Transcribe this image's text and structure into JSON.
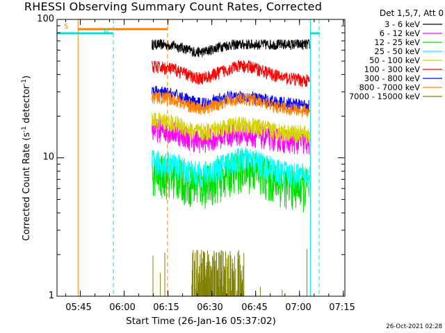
{
  "chart_data": {
    "type": "line",
    "title": "RHESSI Observing Summary Count Rates, Corrected",
    "xlabel": "Start Time (26-Jan-16 05:37:02)",
    "ylabel_main": "Corrected Count Rate (s",
    "ylabel_sup1": "-1",
    "ylabel_mid": " detector",
    "ylabel_sup2": "-1",
    "ylabel_end": ")",
    "yscale": "log",
    "ylim": [
      1,
      100
    ],
    "xlim_minutes": [
      0,
      98.5
    ],
    "x_ticks": [
      "05:45",
      "06:00",
      "06:15",
      "06:30",
      "06:45",
      "07:00",
      "07:15"
    ],
    "y_ticks": [
      "100",
      "10",
      "1"
    ],
    "legend_title": "Det 1,5,7, Att 0",
    "series": [
      {
        "name": "3 - 6 keV",
        "color": "#000000",
        "level": 66,
        "amp": 1.5,
        "hump": 0,
        "noise": 0.04
      },
      {
        "name": "6 - 12 keV",
        "color": "#ff00ff",
        "level": 13.5,
        "amp": 1.2,
        "hump": 0.05,
        "noise": 0.09
      },
      {
        "name": "12 - 25 keV",
        "color": "#00e000",
        "level": 6.5,
        "amp": 1.0,
        "hump": 0.25,
        "noise": 0.16
      },
      {
        "name": "25 - 50 keV",
        "color": "#00ffff",
        "level": 7.8,
        "amp": 0.8,
        "hump": 0.2,
        "noise": 0.1
      },
      {
        "name": "50 - 100 keV",
        "color": "#d4d400",
        "level": 15.5,
        "amp": 1.3,
        "hump": 0.05,
        "noise": 0.07
      },
      {
        "name": "100 - 300 keV",
        "color": "#ff0000",
        "level": 38,
        "amp": 2.5,
        "hump": 0.15,
        "noise": 0.05
      },
      {
        "name": "300 - 800 keV",
        "color": "#0000ff",
        "level": 25,
        "amp": 1.6,
        "hump": 0.05,
        "noise": 0.05
      },
      {
        "name": "800 - 7000 keV",
        "color": "#ff8000",
        "level": 23,
        "amp": 1.5,
        "hump": 0.1,
        "noise": 0.05
      },
      {
        "name": "7000 - 15000 keV",
        "color": "#808000",
        "level": 1,
        "amp": 0,
        "hump": 0,
        "noise": 0
      }
    ],
    "data_interval_minutes": [
      32.5,
      86.5
    ],
    "saa_label": "S",
    "night_label": "N",
    "saa_color": "#ff8000",
    "night_color": "#00e0e0"
  },
  "timestamp": "26-Oct-2021 02:28"
}
